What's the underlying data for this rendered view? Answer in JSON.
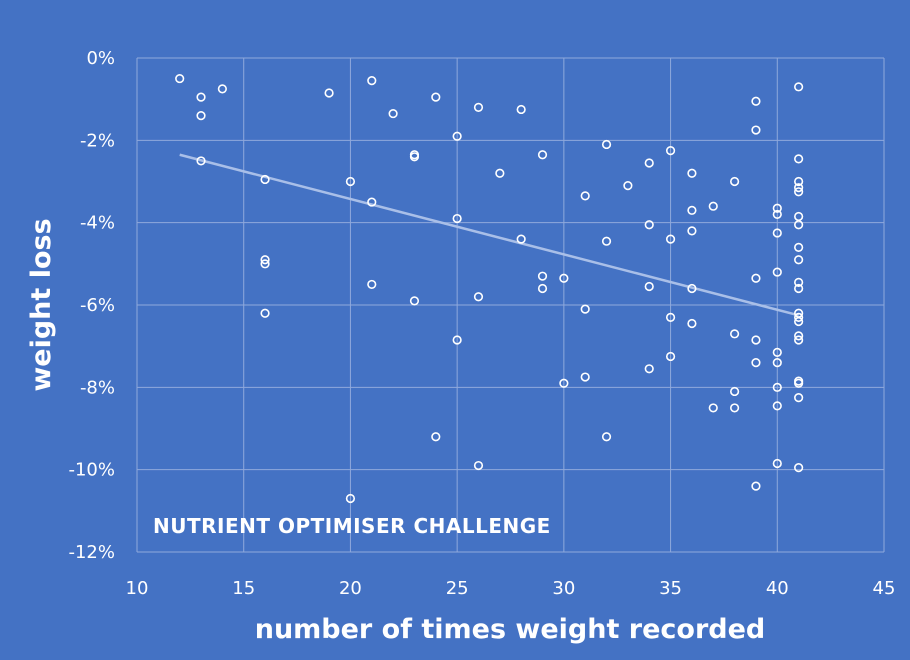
{
  "chart_data": {
    "type": "scatter",
    "title": "",
    "annotation": "NUTRIENT OPTIMISER CHALLENGE",
    "xlabel": "number of times weight recorded",
    "ylabel": "weight loss",
    "xlim": [
      10,
      45
    ],
    "ylim": [
      -12,
      0
    ],
    "x_ticks": [
      10,
      15,
      20,
      25,
      30,
      35,
      40,
      45
    ],
    "x_tick_labels": [
      "10",
      "15",
      "20",
      "25",
      "30",
      "35",
      "40",
      "45"
    ],
    "y_ticks": [
      0,
      -2,
      -4,
      -6,
      -8,
      -10,
      -12
    ],
    "y_tick_labels": [
      "0%",
      "-2%",
      "-4%",
      "-6%",
      "-8%",
      "-10%",
      "-12%"
    ],
    "grid": true,
    "trendline": {
      "x": [
        12,
        41
      ],
      "y": [
        -2.35,
        -6.25
      ]
    },
    "points": [
      [
        12,
        -0.5
      ],
      [
        13,
        -0.95
      ],
      [
        13,
        -1.4
      ],
      [
        13,
        -2.5
      ],
      [
        14,
        -0.75
      ],
      [
        16,
        -2.95
      ],
      [
        16,
        -4.9
      ],
      [
        16,
        -5.0
      ],
      [
        16,
        -6.2
      ],
      [
        19,
        -0.85
      ],
      [
        20,
        -3.0
      ],
      [
        20,
        -10.7
      ],
      [
        21,
        -0.55
      ],
      [
        21,
        -3.5
      ],
      [
        21,
        -5.5
      ],
      [
        22,
        -1.35
      ],
      [
        23,
        -2.35
      ],
      [
        23,
        -2.4
      ],
      [
        23,
        -5.9
      ],
      [
        24,
        -0.95
      ],
      [
        24,
        -9.2
      ],
      [
        25,
        -1.9
      ],
      [
        25,
        -3.9
      ],
      [
        25,
        -6.85
      ],
      [
        26,
        -1.2
      ],
      [
        26,
        -5.8
      ],
      [
        26,
        -9.9
      ],
      [
        27,
        -2.8
      ],
      [
        28,
        -1.25
      ],
      [
        28,
        -4.4
      ],
      [
        29,
        -2.35
      ],
      [
        29,
        -5.3
      ],
      [
        29,
        -5.6
      ],
      [
        30,
        -5.35
      ],
      [
        30,
        -7.9
      ],
      [
        31,
        -3.35
      ],
      [
        31,
        -6.1
      ],
      [
        31,
        -7.75
      ],
      [
        32,
        -2.1
      ],
      [
        32,
        -4.45
      ],
      [
        32,
        -9.2
      ],
      [
        33,
        -3.1
      ],
      [
        34,
        -2.55
      ],
      [
        34,
        -4.05
      ],
      [
        34,
        -5.55
      ],
      [
        34,
        -7.55
      ],
      [
        35,
        -2.25
      ],
      [
        35,
        -4.4
      ],
      [
        35,
        -6.3
      ],
      [
        35,
        -7.25
      ],
      [
        36,
        -2.8
      ],
      [
        36,
        -3.7
      ],
      [
        36,
        -4.2
      ],
      [
        36,
        -5.6
      ],
      [
        36,
        -6.45
      ],
      [
        37,
        -3.6
      ],
      [
        37,
        -8.5
      ],
      [
        38,
        -3.0
      ],
      [
        38,
        -6.7
      ],
      [
        38,
        -8.1
      ],
      [
        38,
        -8.5
      ],
      [
        39,
        -1.05
      ],
      [
        39,
        -1.75
      ],
      [
        39,
        -5.35
      ],
      [
        39,
        -6.85
      ],
      [
        39,
        -7.4
      ],
      [
        39,
        -10.4
      ],
      [
        40,
        -3.65
      ],
      [
        40,
        -3.8
      ],
      [
        40,
        -4.25
      ],
      [
        40,
        -5.2
      ],
      [
        40,
        -7.15
      ],
      [
        40,
        -7.4
      ],
      [
        40,
        -8.0
      ],
      [
        40,
        -8.45
      ],
      [
        40,
        -9.85
      ],
      [
        41,
        -0.7
      ],
      [
        41,
        -2.45
      ],
      [
        41,
        -3.0
      ],
      [
        41,
        -3.15
      ],
      [
        41,
        -3.25
      ],
      [
        41,
        -3.85
      ],
      [
        41,
        -4.05
      ],
      [
        41,
        -4.6
      ],
      [
        41,
        -4.9
      ],
      [
        41,
        -5.45
      ],
      [
        41,
        -5.6
      ],
      [
        41,
        -6.2
      ],
      [
        41,
        -6.3
      ],
      [
        41,
        -6.4
      ],
      [
        41,
        -6.75
      ],
      [
        41,
        -6.85
      ],
      [
        41,
        -7.85
      ],
      [
        41,
        -7.9
      ],
      [
        41,
        -8.25
      ],
      [
        41,
        -9.95
      ]
    ]
  },
  "colors": {
    "background": "#4472c4",
    "grid": "#8fa9dc",
    "marker": "#ffffff",
    "trendline": "#a9bfe8",
    "text": "#ffffff"
  }
}
